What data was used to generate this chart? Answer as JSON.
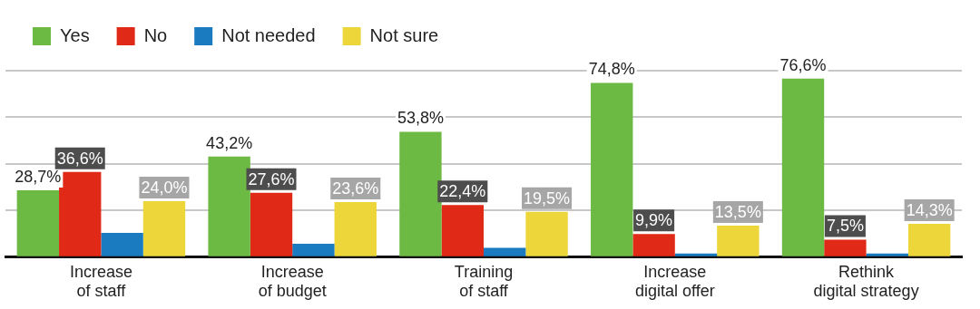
{
  "chart_data": {
    "type": "bar",
    "categories": [
      "Increase\nof staff",
      "Increase\nof budget",
      "Training\nof staff",
      "Increase\ndigital offer",
      "Rethink\ndigital strategy"
    ],
    "series": [
      {
        "name": "Yes",
        "color": "#6cb943",
        "values": [
          28.7,
          43.2,
          53.8,
          74.8,
          76.6
        ],
        "value_labels": [
          "28,7%",
          "43,2%",
          "53,8%",
          "74,8%",
          "76,6%"
        ]
      },
      {
        "name": "No",
        "color": "#e02a17",
        "values": [
          36.6,
          27.6,
          22.4,
          9.9,
          7.5
        ],
        "value_labels": [
          "36,6%",
          "27,6%",
          "22,4%",
          "9,9%",
          "7,5%"
        ]
      },
      {
        "name": "Not needed",
        "color": "#1a7bc1",
        "values": [
          10.4,
          5.8,
          4.0,
          1.6,
          1.6
        ]
      },
      {
        "name": "Not sure",
        "color": "#ecd63a",
        "values": [
          24.0,
          23.6,
          19.5,
          13.5,
          14.3
        ],
        "value_labels": [
          "24,0%",
          "23,6%",
          "19,5%",
          "13,5%",
          "14,3%"
        ]
      }
    ],
    "ylim": [
      0,
      80
    ],
    "yticks": [
      0,
      20,
      40,
      60,
      80
    ],
    "grid": "y",
    "tick_labels": "x",
    "legend": "top left"
  }
}
